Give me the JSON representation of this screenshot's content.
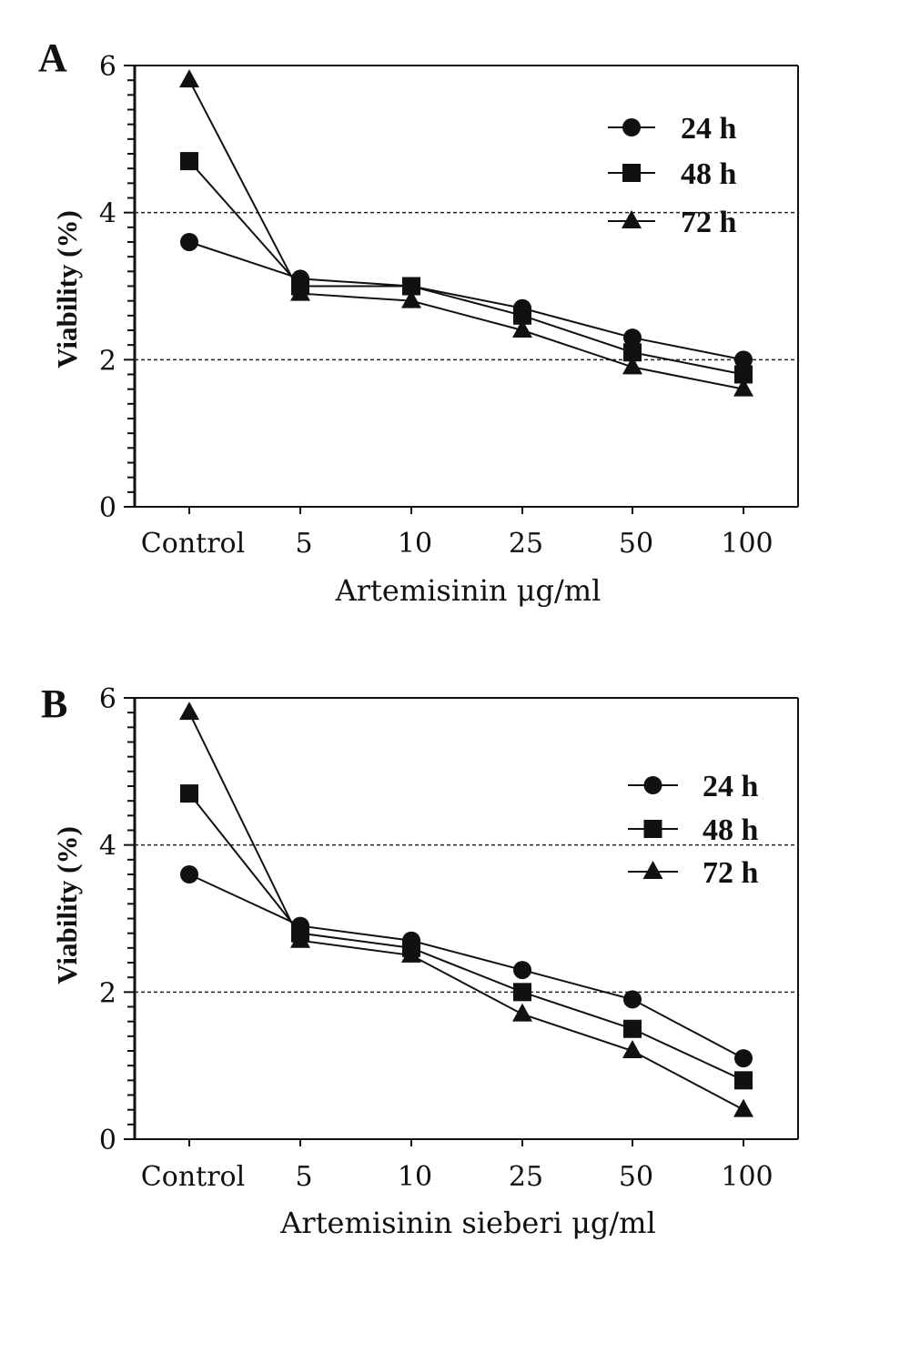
{
  "chart_data": [
    {
      "type": "line",
      "panel_label": "A",
      "xlabel": "Artemisinin μg/ml",
      "ylabel": "Viability (%)",
      "categories": [
        "Control",
        "5",
        "10",
        "25",
        "50",
        "100"
      ],
      "ylim": [
        0,
        6
      ],
      "yticks": [
        "0",
        "2",
        "4",
        "6"
      ],
      "reference_lines": [
        2,
        4
      ],
      "legend_position": "top-right",
      "series": [
        {
          "name": "24 h",
          "marker": "circle",
          "values": [
            3.6,
            3.1,
            3.0,
            2.7,
            2.3,
            2.0
          ]
        },
        {
          "name": "48 h",
          "marker": "square",
          "values": [
            4.7,
            3.0,
            3.0,
            2.6,
            2.1,
            1.8
          ]
        },
        {
          "name": "72 h",
          "marker": "triangle",
          "values": [
            5.8,
            2.9,
            2.8,
            2.4,
            1.9,
            1.6
          ]
        }
      ]
    },
    {
      "type": "line",
      "panel_label": "B",
      "xlabel": "Artemisinin sieberi μg/ml",
      "ylabel": "Viability (%)",
      "categories": [
        "Control",
        "5",
        "10",
        "25",
        "50",
        "100"
      ],
      "ylim": [
        0,
        6
      ],
      "yticks": [
        "0",
        "2",
        "4",
        "6"
      ],
      "reference_lines": [
        2,
        4
      ],
      "legend_position": "top-right",
      "series": [
        {
          "name": "24 h",
          "marker": "circle",
          "values": [
            3.6,
            2.9,
            2.7,
            2.3,
            1.9,
            1.1
          ]
        },
        {
          "name": "48 h",
          "marker": "square",
          "values": [
            4.7,
            2.8,
            2.6,
            2.0,
            1.5,
            0.8
          ]
        },
        {
          "name": "72 h",
          "marker": "triangle",
          "values": [
            5.8,
            2.7,
            2.5,
            1.7,
            1.2,
            0.4
          ]
        }
      ]
    }
  ]
}
